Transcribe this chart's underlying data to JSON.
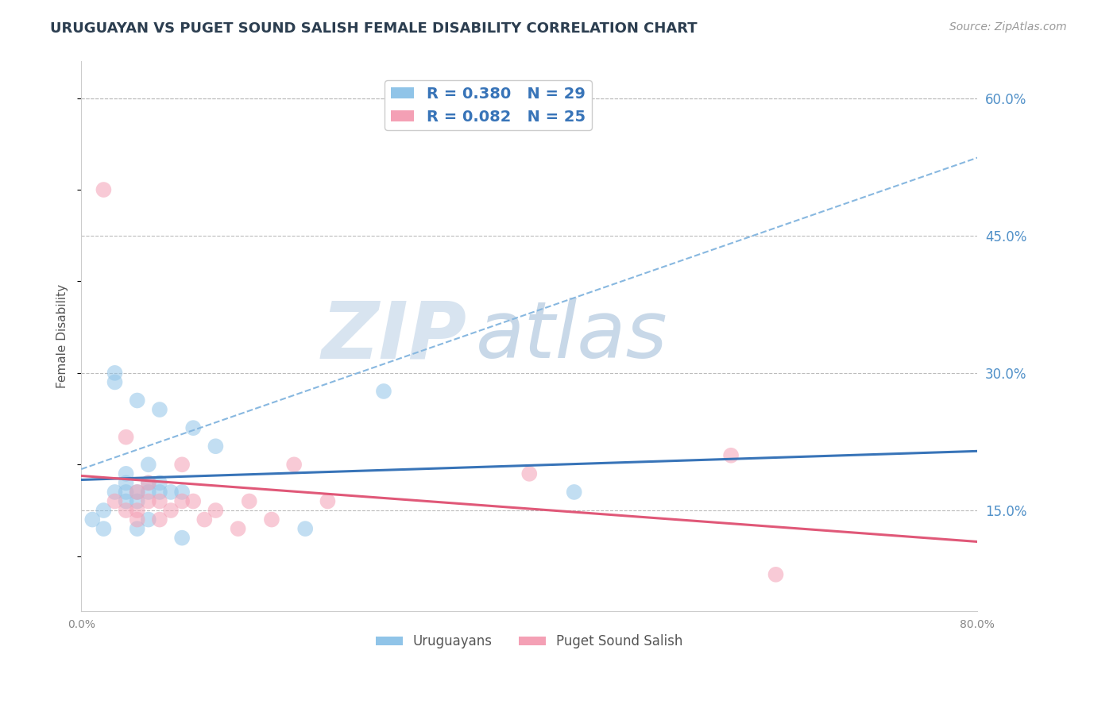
{
  "title": "URUGUAYAN VS PUGET SOUND SALISH FEMALE DISABILITY CORRELATION CHART",
  "source_text": "Source: ZipAtlas.com",
  "ylabel": "Female Disability",
  "xlim": [
    0.0,
    0.8
  ],
  "ylim": [
    0.04,
    0.64
  ],
  "x_ticks": [
    0.0,
    0.1,
    0.2,
    0.3,
    0.4,
    0.5,
    0.6,
    0.7,
    0.8
  ],
  "x_tick_labels": [
    "0.0%",
    "",
    "",
    "",
    "",
    "",
    "",
    "",
    "80.0%"
  ],
  "y_ticks_right": [
    0.15,
    0.3,
    0.45,
    0.6
  ],
  "y_tick_labels_right": [
    "15.0%",
    "30.0%",
    "45.0%",
    "60.0%"
  ],
  "grid_color": "#bbbbbb",
  "background_color": "#ffffff",
  "series": [
    {
      "name": "Uruguayans",
      "R": 0.38,
      "N": 29,
      "color": "#90c4e8",
      "x": [
        0.01,
        0.02,
        0.02,
        0.03,
        0.03,
        0.03,
        0.04,
        0.04,
        0.04,
        0.04,
        0.05,
        0.05,
        0.05,
        0.05,
        0.06,
        0.06,
        0.06,
        0.06,
        0.07,
        0.07,
        0.07,
        0.08,
        0.09,
        0.09,
        0.1,
        0.12,
        0.2,
        0.27,
        0.44
      ],
      "y": [
        0.14,
        0.15,
        0.13,
        0.17,
        0.29,
        0.3,
        0.16,
        0.17,
        0.18,
        0.19,
        0.16,
        0.17,
        0.27,
        0.13,
        0.17,
        0.18,
        0.2,
        0.14,
        0.17,
        0.18,
        0.26,
        0.17,
        0.17,
        0.12,
        0.24,
        0.22,
        0.13,
        0.28,
        0.17
      ]
    },
    {
      "name": "Puget Sound Salish",
      "R": 0.082,
      "N": 25,
      "color": "#f4a0b5",
      "x": [
        0.02,
        0.03,
        0.04,
        0.04,
        0.05,
        0.05,
        0.05,
        0.06,
        0.06,
        0.07,
        0.07,
        0.08,
        0.09,
        0.09,
        0.1,
        0.11,
        0.12,
        0.14,
        0.15,
        0.17,
        0.19,
        0.22,
        0.4,
        0.58,
        0.62
      ],
      "y": [
        0.5,
        0.16,
        0.15,
        0.23,
        0.14,
        0.15,
        0.17,
        0.16,
        0.18,
        0.14,
        0.16,
        0.15,
        0.2,
        0.16,
        0.16,
        0.14,
        0.15,
        0.13,
        0.16,
        0.14,
        0.2,
        0.16,
        0.19,
        0.21,
        0.08
      ]
    }
  ],
  "trend_blue_color": "#3874b8",
  "trend_pink_color": "#e05878",
  "dashed_line_color": "#88b8e0",
  "right_axis_color": "#5090c8",
  "watermark_zip_color": "#d8e4f0",
  "watermark_atlas_color": "#c8d8e8",
  "legend_text_color": "#3874b8",
  "legend_edge_color": "#cccccc"
}
